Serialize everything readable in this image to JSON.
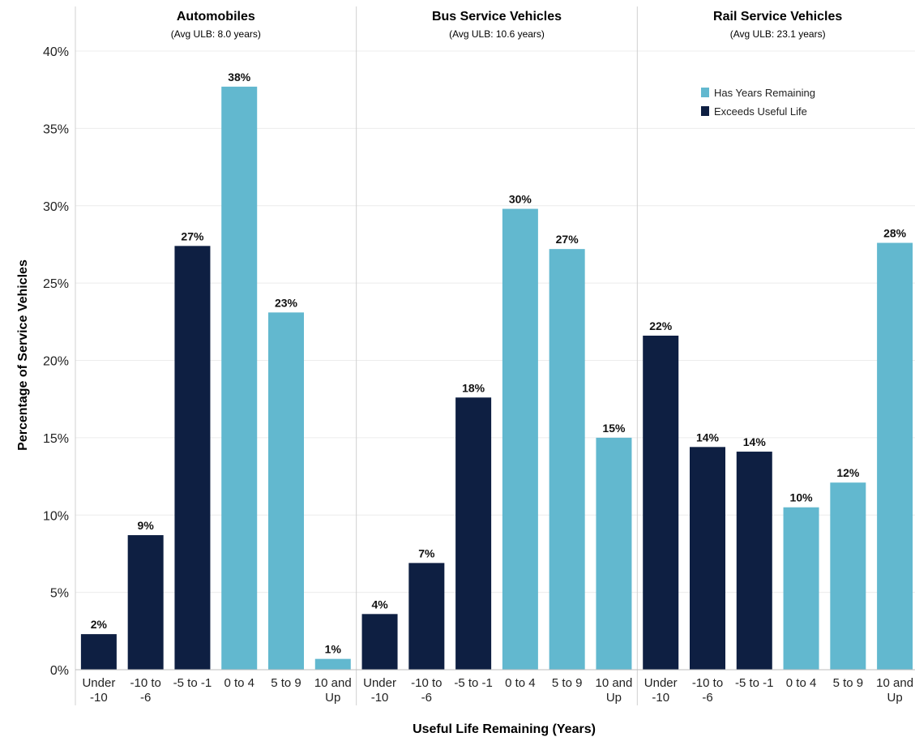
{
  "chart_data": {
    "type": "bar",
    "ylabel": "Percentage of Service Vehicles",
    "xlabel": "Useful Life Remaining (Years)",
    "ylim": [
      0,
      40
    ],
    "yticks": [
      "0%",
      "5%",
      "10%",
      "15%",
      "20%",
      "25%",
      "30%",
      "35%",
      "40%"
    ],
    "grid": true,
    "legend_position": "top-right",
    "colors": {
      "has_years_remaining": "#62b8cf",
      "exceeds_useful_life": "#0e1f42"
    },
    "legend": [
      {
        "key": "has_years_remaining",
        "label": "Has Years Remaining"
      },
      {
        "key": "exceeds_useful_life",
        "label": "Exceeds Useful Life"
      }
    ],
    "categories": [
      [
        "Under",
        "-10"
      ],
      [
        "-10 to",
        "-6"
      ],
      [
        "-5 to -1"
      ],
      [
        "0 to 4"
      ],
      [
        "5 to 9"
      ],
      [
        "10 and",
        "Up"
      ]
    ],
    "status": [
      "exceeds_useful_life",
      "exceeds_useful_life",
      "exceeds_useful_life",
      "has_years_remaining",
      "has_years_remaining",
      "has_years_remaining"
    ],
    "panels": [
      {
        "title": "Automobiles",
        "subtitle": "(Avg ULB: 8.0 years)",
        "values": [
          2.3,
          8.7,
          27.4,
          37.7,
          23.1,
          0.7
        ],
        "labels": [
          "2%",
          "9%",
          "27%",
          "38%",
          "23%",
          "1%"
        ]
      },
      {
        "title": "Bus Service Vehicles",
        "subtitle": "(Avg ULB: 10.6 years)",
        "values": [
          3.6,
          6.9,
          17.6,
          29.8,
          27.2,
          15.0
        ],
        "labels": [
          "4%",
          "7%",
          "18%",
          "30%",
          "27%",
          "15%"
        ]
      },
      {
        "title": "Rail Service Vehicles",
        "subtitle": "(Avg ULB: 23.1 years)",
        "values": [
          21.6,
          14.4,
          14.1,
          10.5,
          12.1,
          27.6
        ],
        "labels": [
          "22%",
          "14%",
          "14%",
          "10%",
          "12%",
          "28%"
        ]
      }
    ]
  }
}
